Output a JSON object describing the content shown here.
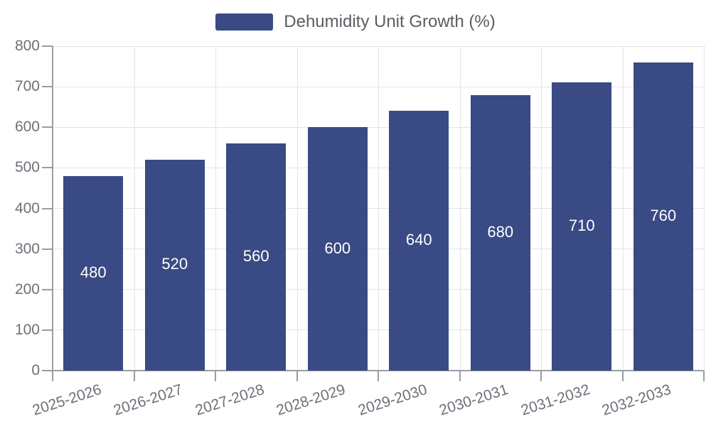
{
  "legend": {
    "label": "Dehumidity Unit Growth (%)"
  },
  "colors": {
    "bar": "#3A4A84",
    "axis_line": "#9A9DA3",
    "grid_line": "#E2E4EA",
    "axis_text": "#6E7079",
    "legend_text": "#5B5D63",
    "value_label_text": "#FFFFFF",
    "background": "#FFFFFF"
  },
  "chart_data": {
    "type": "bar",
    "title": "Dehumidity Unit Growth (%)",
    "categories": [
      "2025-2026",
      "2026-2027",
      "2027-2028",
      "2028-2029",
      "2029-2030",
      "2030-2031",
      "2031-2032",
      "2032-2033"
    ],
    "series": [
      {
        "name": "Dehumidity Unit Growth (%)",
        "values": [
          480,
          520,
          560,
          600,
          640,
          680,
          710,
          760
        ]
      }
    ],
    "xlabel": "",
    "ylabel": "",
    "ylim": [
      0,
      800
    ],
    "y_ticks": [
      0,
      100,
      200,
      300,
      400,
      500,
      600,
      700,
      800
    ],
    "grid": true,
    "legend_position": "top-center",
    "value_label_position": "inside-center",
    "x_tick_rotation_deg": 18
  }
}
